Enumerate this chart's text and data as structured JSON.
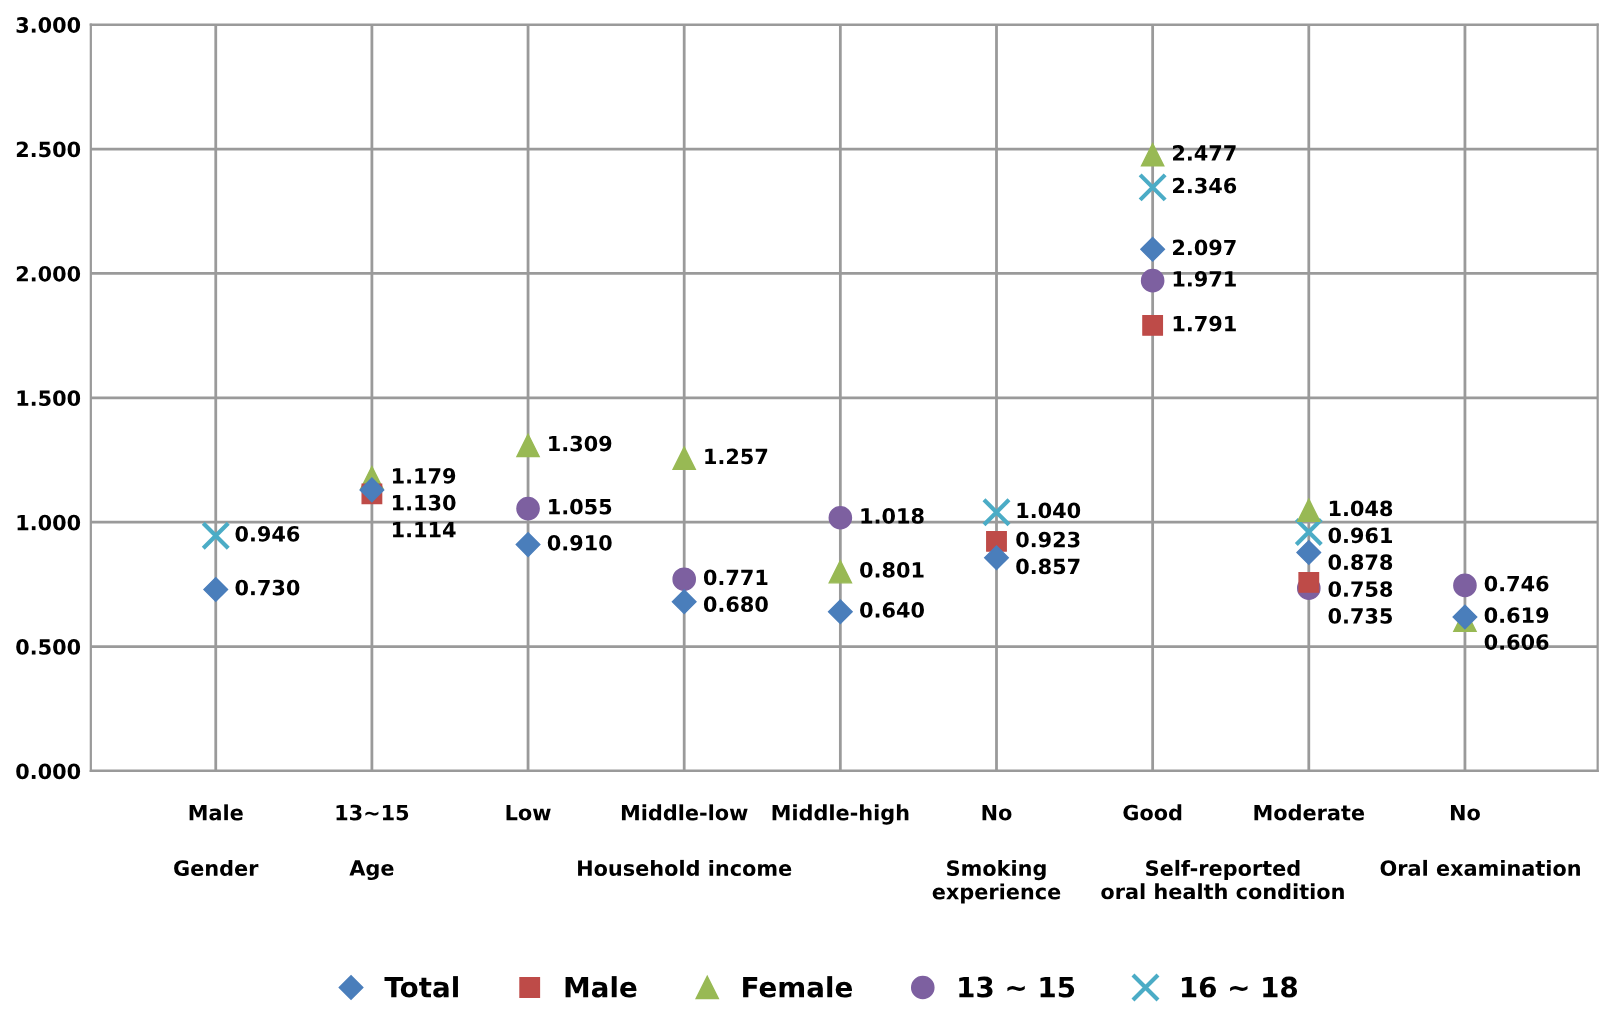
{
  "chart_data": {
    "type": "scatter",
    "categories": [
      "Male",
      "13~15",
      "Low",
      "Middle-low",
      "Middle-high",
      "No",
      "Good",
      "Moderate",
      "No"
    ],
    "series": [
      {
        "name": "Total",
        "color": "#4a7ebb",
        "marker": "diamond",
        "values": [
          0.73,
          1.13,
          0.91,
          0.68,
          0.64,
          0.857,
          2.097,
          0.878,
          0.619
        ],
        "value_labels": [
          "0.730",
          "1.130",
          "0.910",
          "0.680",
          "0.640",
          "0.857",
          "2.097",
          "0.878",
          "0.619"
        ]
      },
      {
        "name": "Male",
        "color": "#be4b48",
        "marker": "square",
        "values": [
          null,
          1.114,
          null,
          null,
          null,
          0.923,
          1.791,
          0.758,
          null
        ],
        "value_labels": [
          null,
          "1.114",
          null,
          null,
          null,
          "0.923",
          "1.791",
          "0.758",
          null
        ]
      },
      {
        "name": "Female",
        "color": "#98b954",
        "marker": "triangle",
        "values": [
          null,
          1.179,
          1.309,
          1.257,
          0.801,
          null,
          2.477,
          1.048,
          0.606
        ],
        "value_labels": [
          null,
          "1.179",
          "1.309",
          "1.257",
          "0.801",
          null,
          "2.477",
          "1.048",
          "0.606"
        ]
      },
      {
        "name": "13 ~ 15",
        "color": "#7d60a0",
        "marker": "circle",
        "values": [
          null,
          null,
          1.055,
          0.771,
          1.018,
          null,
          1.971,
          0.735,
          0.746
        ],
        "value_labels": [
          null,
          null,
          "1.055",
          "0.771",
          "1.018",
          null,
          "1.971",
          "0.735",
          "0.746"
        ]
      },
      {
        "name": "16 ~ 18",
        "color": "#4bacc6",
        "marker": "cross",
        "values": [
          0.946,
          null,
          null,
          null,
          null,
          1.04,
          2.346,
          0.961,
          null
        ],
        "value_labels": [
          "0.946",
          null,
          null,
          null,
          null,
          "1.040",
          "2.346",
          "0.961",
          null
        ]
      }
    ],
    "ylim": [
      0,
      3
    ],
    "yticks": [
      {
        "value": 0,
        "label": "0.000"
      },
      {
        "value": 0.5,
        "label": "0.500"
      },
      {
        "value": 1,
        "label": "1.000"
      },
      {
        "value": 1.5,
        "label": "1.500"
      },
      {
        "value": 2,
        "label": "2.000"
      },
      {
        "value": 2.5,
        "label": "2.500"
      },
      {
        "value": 3,
        "label": "3.000"
      }
    ],
    "annotations": [
      "Gender",
      "Age",
      "Household income",
      "Smoking\nexperience",
      "Self-reported\noral health condition",
      "Oral examination"
    ],
    "grid": true,
    "legend": "bottom"
  }
}
